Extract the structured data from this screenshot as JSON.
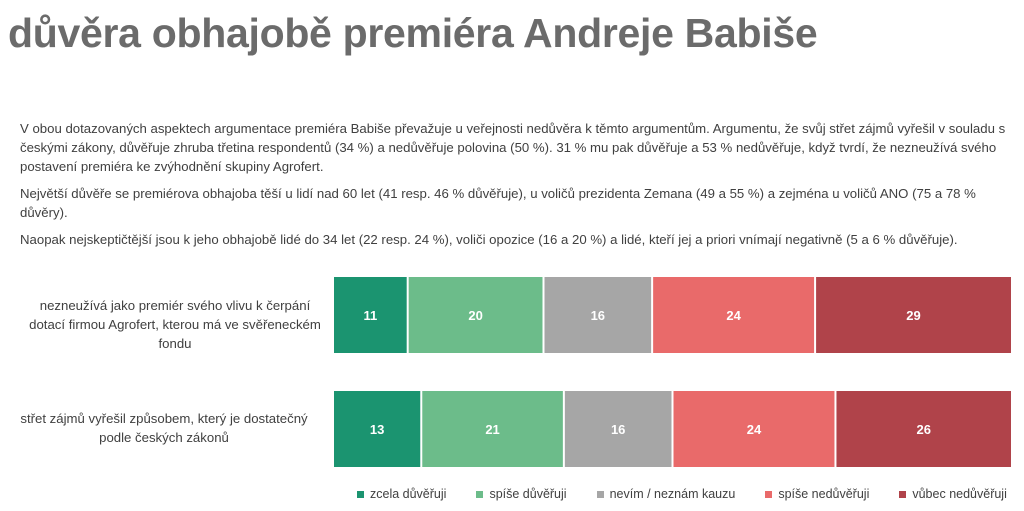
{
  "page": {
    "title": "důvěra obhajobě premiéra Andreje Babiše",
    "paragraphs": [
      "V obou dotazovaných aspektech argumentace premiéra Babiše převažuje u veřejnosti nedůvěra k těmto argumentům. Argumentu, že svůj střet zájmů vyřešil v souladu s českými zákony, důvěřuje zhruba třetina respondentů (34 %) a nedůvěřuje polovina (50 %). 31 % mu pak důvěřuje a 53 % nedůvěřuje, když tvrdí, že nezneužívá svého postavení premiéra ke zvýhodnění skupiny Agrofert.",
      "Největší důvěře se premiérova obhajoba těší u lidí nad 60 let (41 resp. 46 % důvěřuje), u voličů prezidenta Zemana (49 a 55 %) a zejména u voličů ANO (75 a 78 % důvěry).",
      "Naopak nejskeptičtější jsou k jeho obhajobě lidé do 34 let (22 resp. 24 %), voliči opozice (16 a 20 %) a lidé, kteří jej a priori vnímají negativně (5 a 6 % důvěřuje)."
    ]
  },
  "chart_data": {
    "type": "bar",
    "orientation": "horizontal",
    "stacked": true,
    "title": "",
    "xlabel": "",
    "ylabel": "",
    "xlim": [
      0,
      100
    ],
    "legend_position": "bottom",
    "grid": false,
    "categories": [
      "nezneužívá jako premiér svého vlivu k čerpání dotací firmou Agrofert, kterou má ve svěřeneckém fondu",
      "střet zájmů vyřešil způsobem, který je dostatečný podle českých zákonů"
    ],
    "series": [
      {
        "name": "zcela důvěřuji",
        "color": "#1b9470",
        "values": [
          11,
          13
        ]
      },
      {
        "name": "spíše důvěřuji",
        "color": "#6cbc8a",
        "values": [
          20,
          21
        ]
      },
      {
        "name": "nevím / neznám kauzu",
        "color": "#a6a6a6",
        "values": [
          16,
          16
        ]
      },
      {
        "name": "spíše nedůvěřuji",
        "color": "#e96a6a",
        "values": [
          24,
          24
        ]
      },
      {
        "name": "vůbec nedůvěřuji",
        "color": "#b0434a",
        "values": [
          29,
          26
        ]
      }
    ]
  }
}
